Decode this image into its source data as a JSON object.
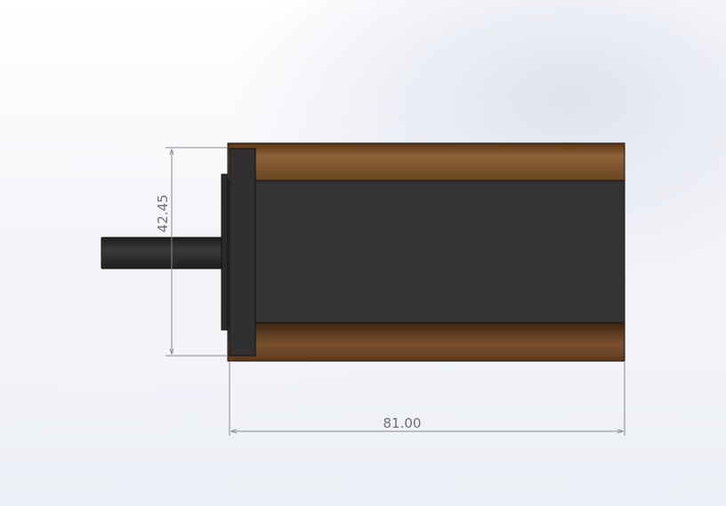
{
  "drawing": {
    "dimensions": {
      "height_label": "42.45",
      "length_label": "81.00"
    },
    "colors": {
      "body": "#333333",
      "flange": "#7a4f2a",
      "shaft": "#2f2f2f",
      "dimension_line": "#8a8a8a",
      "dimension_text": "#6f6f6f"
    }
  }
}
